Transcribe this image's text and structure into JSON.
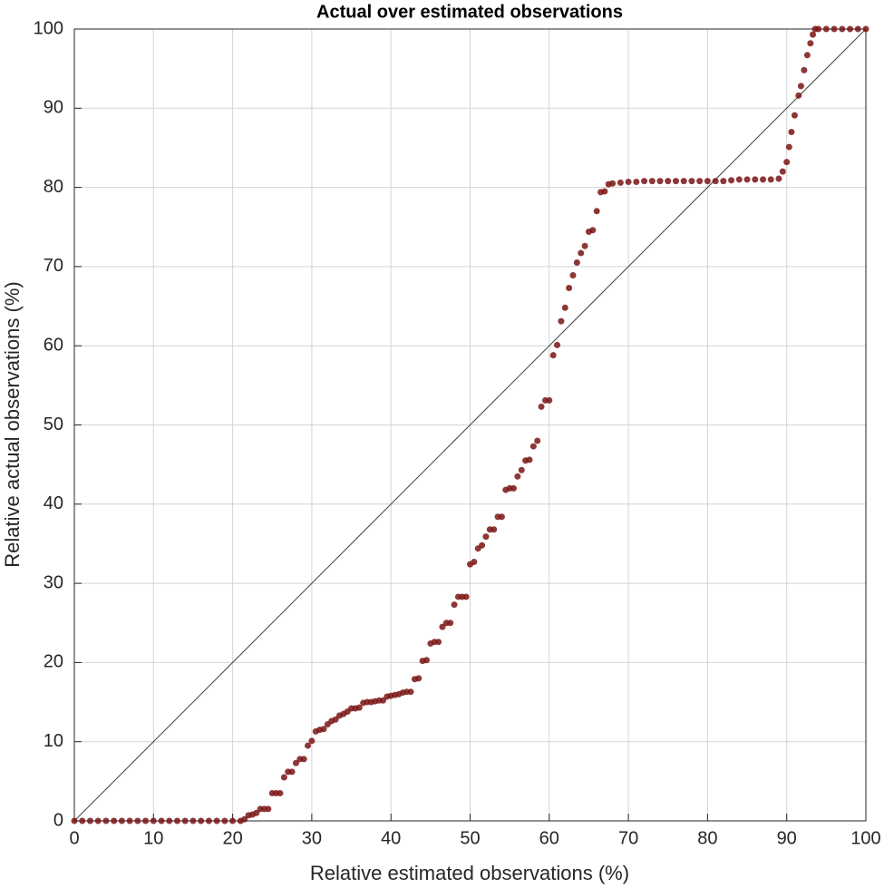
{
  "chart_data": {
    "type": "scatter",
    "title": "Actual over estimated observations",
    "x_label": "Relative estimated observations (%)",
    "y_label": "Relative actual observations (%)",
    "color": "#7a1414",
    "x": [
      0,
      1,
      2,
      3,
      4,
      5,
      6,
      7,
      8,
      9,
      10,
      11,
      12,
      13,
      14,
      15,
      16,
      17,
      18,
      19,
      20,
      21,
      21.5,
      22,
      22.5,
      23,
      23.5,
      24,
      24.5,
      25,
      25.5,
      26,
      26.5,
      27,
      27.5,
      28,
      28.5,
      29,
      29.5,
      30,
      30.5,
      31,
      31.5,
      32,
      32.5,
      33,
      33.5,
      34,
      34.5,
      35,
      35.5,
      36,
      36.5,
      37,
      37.5,
      38,
      38.5,
      39,
      39.5,
      40,
      40.5,
      41,
      41.5,
      42,
      42.5,
      43,
      43.5,
      44,
      44.5,
      45,
      45.5,
      46,
      46.5,
      47,
      47.5,
      48,
      48.5,
      49,
      49.5,
      50,
      50.5,
      51,
      51.5,
      52,
      52.5,
      53,
      53.5,
      54,
      54.5,
      55,
      55.5,
      56,
      56.5,
      57,
      57.5,
      58,
      58.5,
      59,
      59.5,
      60,
      60.5,
      61,
      61.5,
      62,
      62.5,
      63,
      63.5,
      64,
      64.5,
      65,
      65.5,
      66,
      66.5,
      67,
      67.5,
      68,
      69,
      70,
      71,
      72,
      73,
      74,
      75,
      76,
      77,
      78,
      79,
      80,
      81,
      82,
      83,
      84,
      85,
      86,
      87,
      88,
      89,
      89.5,
      90,
      90.3,
      90.6,
      91,
      91.5,
      91.8,
      92.2,
      92.6,
      93,
      93.3,
      93.6,
      94,
      95,
      96,
      97,
      98,
      99,
      100
    ],
    "values": [
      0,
      0,
      0,
      0,
      0,
      0,
      0,
      0,
      0,
      0,
      0,
      0,
      0,
      0,
      0,
      0,
      0,
      0,
      0,
      0,
      0,
      0,
      0.2,
      0.7,
      0.8,
      1.0,
      1.5,
      1.5,
      1.5,
      3.5,
      3.5,
      3.5,
      5.5,
      6.2,
      6.2,
      7.3,
      7.8,
      7.8,
      9.5,
      10.1,
      11.3,
      11.5,
      11.6,
      12.2,
      12.6,
      12.8,
      13.3,
      13.5,
      13.8,
      14.2,
      14.2,
      14.3,
      14.9,
      15.0,
      15.0,
      15.1,
      15.2,
      15.2,
      15.7,
      15.8,
      15.9,
      16.0,
      16.2,
      16.3,
      16.3,
      17.9,
      18.0,
      20.2,
      20.3,
      22.4,
      22.6,
      22.6,
      24.5,
      25.0,
      25.0,
      27.3,
      28.3,
      28.3,
      28.3,
      32.4,
      32.7,
      34.4,
      34.8,
      35.9,
      36.8,
      36.8,
      38.4,
      38.4,
      41.8,
      42.0,
      42.0,
      43.5,
      44.3,
      45.5,
      45.6,
      47.3,
      48.0,
      52.3,
      53.1,
      53.1,
      58.8,
      60.1,
      63.1,
      64.8,
      67.3,
      68.9,
      70.5,
      71.7,
      72.6,
      74.4,
      74.6,
      77.0,
      79.4,
      79.5,
      80.4,
      80.5,
      80.6,
      80.7,
      80.7,
      80.8,
      80.8,
      80.8,
      80.8,
      80.8,
      80.8,
      80.8,
      80.8,
      80.8,
      80.8,
      80.8,
      80.9,
      81.0,
      81.0,
      81.0,
      81.0,
      81.0,
      81.1,
      82.0,
      83.2,
      85.1,
      87.0,
      89.1,
      91.6,
      92.8,
      94.8,
      96.7,
      98.2,
      99.3,
      100,
      100,
      100,
      100,
      100,
      100,
      100,
      100
    ],
    "reference_line": {
      "x": [
        0,
        100
      ],
      "values": [
        0,
        100
      ],
      "color": "#444444"
    },
    "xlim": [
      0,
      100
    ],
    "ylim": [
      0,
      100
    ],
    "xticks": [
      0,
      10,
      20,
      30,
      40,
      50,
      60,
      70,
      80,
      90,
      100
    ],
    "yticks": [
      0,
      10,
      20,
      30,
      40,
      50,
      60,
      70,
      80,
      90,
      100
    ],
    "grid": true
  }
}
